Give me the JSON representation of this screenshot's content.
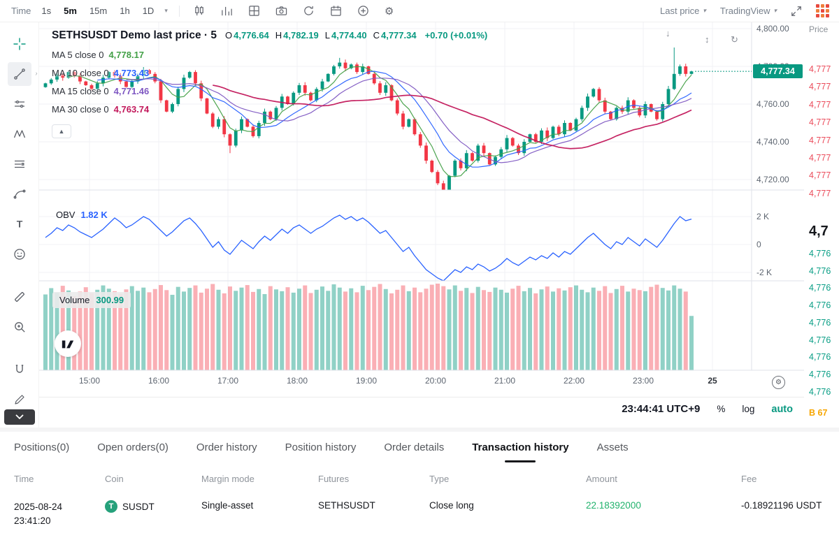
{
  "colors": {
    "up": "#089981",
    "down": "#f23645",
    "accent": "#089981",
    "amount_green": "#20b26c",
    "bybit_orange": "#f7a600",
    "obv_blue": "#2962ff",
    "ask_red": "#eb4d5c",
    "bid_teal": "#0a9e86"
  },
  "toolbar": {
    "time_label": "Time",
    "intervals": [
      "1s",
      "5m",
      "15m",
      "1h",
      "1D"
    ],
    "active_interval": "5m",
    "icons": [
      "candlestick-icon",
      "indicators-icon",
      "grid-layout-icon",
      "camera-icon",
      "replay-icon",
      "calendar-icon",
      "add-circle-icon",
      "settings-icon"
    ],
    "last_price_label": "Last price",
    "tradingview_label": "TradingView"
  },
  "sidebar": {
    "tools": [
      "crosshair",
      "trend-line",
      "horizontal-line",
      "xabcd-pattern",
      "fib-retracement",
      "brush",
      "text",
      "emoji",
      "ruler",
      "zoom-in",
      "magnet",
      "edit",
      "collapse"
    ]
  },
  "chart": {
    "title": "SETHSUSDT Demo last price · 5",
    "ohlc": [
      {
        "k": "O",
        "v": "4,776.64"
      },
      {
        "k": "H",
        "v": "4,782.19"
      },
      {
        "k": "L",
        "v": "4,774.40"
      },
      {
        "k": "C",
        "v": "4,777.34"
      }
    ],
    "change": "+0.70 (+0.01%)",
    "ma_legend": [
      {
        "period": "5",
        "label": "MA 5 close 0",
        "value": "4,778.17"
      },
      {
        "period": "10",
        "label": "MA 10 close 0",
        "value": "4,773.43"
      },
      {
        "period": "15",
        "label": "MA 15 close 0",
        "value": "4,771.46"
      },
      {
        "period": "30",
        "label": "MA 30 close 0",
        "value": "4,763.74"
      }
    ],
    "price_axis": [
      "4,800.00",
      "4,780.00",
      "4,760.00",
      "4,740.00",
      "4,720.00"
    ],
    "last_price_tag": "4,777.34",
    "obv": {
      "label": "OBV",
      "value": "1.82 K",
      "axis": [
        "2 K",
        "0",
        "-2 K"
      ]
    },
    "volume": {
      "label": "Volume",
      "value": "300.99"
    },
    "time_axis": [
      "15:00",
      "16:00",
      "17:00",
      "18:00",
      "19:00",
      "20:00",
      "21:00",
      "22:00",
      "23:00",
      "25"
    ],
    "status": {
      "clock": "23:44:41 UTC+9",
      "percent": "%",
      "log": "log",
      "auto": "auto"
    }
  },
  "chart_data": {
    "type": "candlestick",
    "symbol": "SETHSUSDT",
    "interval": "5m",
    "price_axis_range": [
      4720,
      4800
    ],
    "first_candle_open": 4769,
    "closes": [
      4771,
      4773,
      4776,
      4774,
      4777,
      4775,
      4772,
      4770,
      4768,
      4771,
      4774,
      4777,
      4775,
      4772,
      4769,
      4772,
      4775,
      4778,
      4776,
      4772,
      4762,
      4756,
      4760,
      4768,
      4774,
      4777,
      4771,
      4763,
      4755,
      4748,
      4752,
      4744,
      4738,
      4746,
      4752,
      4748,
      4743,
      4750,
      4756,
      4752,
      4758,
      4764,
      4760,
      4766,
      4770,
      4766,
      4762,
      4768,
      4772,
      4776,
      4780,
      4782,
      4779,
      4781,
      4777,
      4780,
      4776,
      4771,
      4766,
      4770,
      4762,
      4755,
      4748,
      4752,
      4744,
      4738,
      4730,
      4724,
      4718,
      4714,
      4722,
      4730,
      4726,
      4734,
      4730,
      4738,
      4734,
      4728,
      4732,
      4736,
      4742,
      4738,
      4734,
      4740,
      4744,
      4740,
      4746,
      4742,
      4748,
      4744,
      4750,
      4746,
      4752,
      4758,
      4764,
      4768,
      4762,
      4756,
      4752,
      4758,
      4756,
      4762,
      4758,
      4754,
      4760,
      4756,
      4752,
      4760,
      4768,
      4776,
      4780,
      4776,
      4777.34
    ],
    "wick_overrides": {
      "32": {
        "low": 4734
      },
      "51": {
        "high": 4784.5
      },
      "69": {
        "low": 4712.5
      },
      "109": {
        "high": 4790
      }
    },
    "ma_periods": [
      5,
      10,
      15,
      30
    ],
    "ma_colors": {
      "5": "#43a047",
      "10": "#2962ff",
      "15": "#7e57c2",
      "30": "#c2185b"
    },
    "obv_axis_range_k": [
      -2,
      2
    ],
    "obv_series_k": [
      0.5,
      0.8,
      1.2,
      1.0,
      1.4,
      1.2,
      0.9,
      0.7,
      0.5,
      0.8,
      1.1,
      1.5,
      1.9,
      1.6,
      1.2,
      1.4,
      1.7,
      2.0,
      1.8,
      1.4,
      1.0,
      0.6,
      0.9,
      1.3,
      1.7,
      1.9,
      1.5,
      1.0,
      0.4,
      -0.2,
      0.2,
      -0.4,
      -0.7,
      -0.2,
      0.3,
      0.0,
      -0.3,
      0.2,
      0.6,
      0.3,
      0.7,
      1.1,
      0.8,
      1.2,
      1.4,
      1.1,
      0.8,
      1.1,
      1.3,
      1.6,
      1.9,
      2.1,
      1.8,
      2.0,
      1.7,
      1.9,
      1.6,
      1.2,
      0.8,
      1.0,
      0.5,
      0.0,
      -0.5,
      -0.2,
      -0.8,
      -1.3,
      -1.8,
      -2.1,
      -2.4,
      -2.6,
      -2.2,
      -1.8,
      -2.0,
      -1.6,
      -1.8,
      -1.4,
      -1.6,
      -1.9,
      -1.7,
      -1.4,
      -1.0,
      -1.3,
      -1.5,
      -1.2,
      -0.9,
      -1.1,
      -0.8,
      -1.0,
      -0.6,
      -0.9,
      -0.5,
      -0.7,
      -0.3,
      0.1,
      0.5,
      0.8,
      0.4,
      0.0,
      -0.3,
      0.2,
      0.0,
      0.5,
      0.2,
      -0.1,
      0.4,
      0.1,
      -0.2,
      0.3,
      0.9,
      1.5,
      2.0,
      1.7,
      1.82
    ],
    "volumes": [
      420,
      455,
      430,
      468,
      442,
      410,
      436,
      460,
      428,
      446,
      470,
      452,
      438,
      424,
      448,
      466,
      440,
      458,
      432,
      450,
      472,
      444,
      418,
      462,
      436,
      456,
      470,
      430,
      452,
      478,
      446,
      426,
      464,
      440,
      458,
      472,
      434,
      450,
      422,
      466,
      448,
      438,
      460,
      430,
      452,
      470,
      428,
      446,
      464,
      440,
      476,
      458,
      436,
      454,
      432,
      468,
      444,
      462,
      478,
      450,
      426,
      446,
      470,
      438,
      458,
      432,
      452,
      474,
      480,
      466,
      448,
      470,
      440,
      456,
      428,
      462,
      444,
      434,
      458,
      446,
      430,
      452,
      468,
      438,
      456,
      426,
      448,
      464,
      436,
      454,
      442,
      460,
      470,
      446,
      432,
      458,
      440,
      466,
      428,
      450,
      468,
      436,
      452,
      444,
      438,
      462,
      474,
      456,
      442,
      470,
      452,
      436,
      300.99
    ],
    "current": {
      "open": 4776.64,
      "high": 4782.19,
      "low": 4774.4,
      "close": 4777.34,
      "change": "+0.70 (+0.01%)",
      "obv_k": 1.82,
      "volume": 300.99
    }
  },
  "orderbook": {
    "header": "Price",
    "asks": [
      "4,777",
      "4,777",
      "4,777",
      "4,777",
      "4,777",
      "4,777",
      "4,777",
      "4,777"
    ],
    "mid": "4,7",
    "bids": [
      "4,776",
      "4,776",
      "4,776",
      "4,776",
      "4,776",
      "4,776",
      "4,776",
      "4,776",
      "4,776"
    ],
    "footer": "B 67"
  },
  "bottom_panel": {
    "tabs": [
      "Positions(0)",
      "Open orders(0)",
      "Order history",
      "Position history",
      "Order details",
      "Transaction history",
      "Assets"
    ],
    "active_tab": "Transaction history",
    "table": {
      "headers": [
        "Time",
        "Coin",
        "Margin mode",
        "Futures",
        "Type",
        "Amount",
        "Fee"
      ],
      "rows": [
        {
          "time": [
            "2025-08-24",
            "23:41:20"
          ],
          "coin": "SUSDT",
          "coin_icon": "usdt-icon",
          "margin_mode": "Single-asset",
          "futures": "SETHSUSDT",
          "type": "Close long",
          "amount": "22.18392000",
          "fee": "-0.18921196 USDT"
        }
      ]
    }
  }
}
